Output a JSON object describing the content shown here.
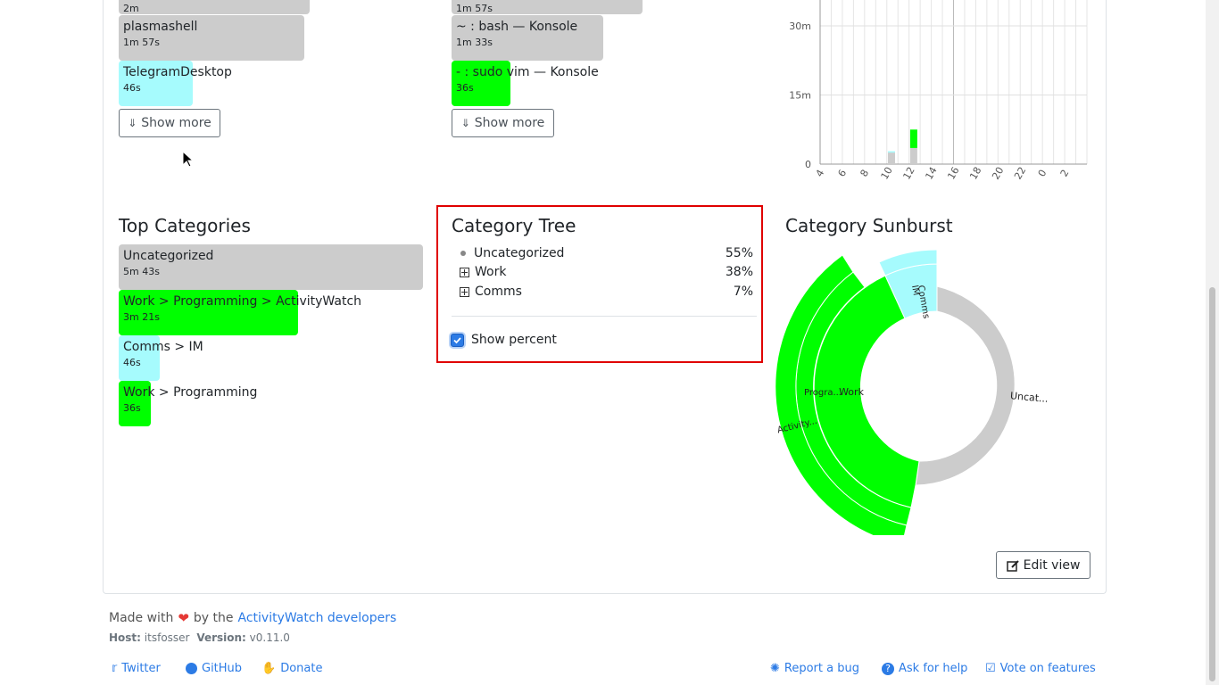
{
  "top_apps": {
    "items": [
      {
        "name": "",
        "time": "2m",
        "fill": 0.79,
        "color": "#cccccc"
      },
      {
        "name": "plasmashell",
        "time": "1m 57s",
        "fill": 0.61,
        "color": "#cccccc"
      },
      {
        "name": "TelegramDesktop",
        "time": "46s",
        "fill": 0.24,
        "color": "#a6fbfd"
      }
    ],
    "show_more": "Show more"
  },
  "top_titles": {
    "items": [
      {
        "name": "",
        "time": "1m 57s",
        "fill": 0.64,
        "color": "#cccccc"
      },
      {
        "name": "~ : bash — Konsole",
        "time": "1m 33s",
        "fill": 0.51,
        "color": "#cccccc"
      },
      {
        "name": "- : sudo vim — Konsole",
        "time": "36s",
        "fill": 0.2,
        "color": "#00ff00"
      }
    ],
    "show_more": "Show more"
  },
  "timeline_chart": {
    "y_ticks": [
      "30m",
      "15m",
      "0"
    ],
    "x_ticks": [
      "4",
      "6",
      "8",
      "10",
      "12",
      "14",
      "16",
      "18",
      "20",
      "22",
      "0",
      "2"
    ]
  },
  "chart_data": {
    "type": "bar",
    "categories": [
      "4",
      "5",
      "6",
      "7",
      "8",
      "9",
      "10",
      "11",
      "12",
      "13",
      "14",
      "15",
      "16",
      "17",
      "18",
      "19",
      "20",
      "21",
      "22",
      "23",
      "0",
      "1",
      "2",
      "3"
    ],
    "series": [
      {
        "values": [
          0,
          0,
          0,
          0,
          0,
          0,
          2.5,
          0,
          3.5,
          0,
          0,
          0,
          0,
          0,
          0,
          0,
          0,
          0,
          0,
          0,
          0,
          0,
          0,
          0
        ]
      },
      {
        "values": [
          0,
          0,
          0,
          0,
          0,
          0,
          0.3,
          0,
          0,
          0,
          0,
          0,
          0,
          0,
          0,
          0,
          0,
          0,
          0,
          0,
          0,
          0,
          0,
          0
        ]
      },
      {
        "values": [
          0,
          0,
          0,
          0,
          0,
          0,
          0,
          0,
          4,
          0,
          0,
          0,
          0,
          0,
          0,
          0,
          0,
          0,
          0,
          0,
          0,
          0,
          0,
          0
        ]
      }
    ],
    "series_colors": [
      "#cccccc",
      "#a6fbfd",
      "#00ff00"
    ],
    "ylim": [
      0,
      35
    ],
    "grid": true
  },
  "top_categories": {
    "title": "Top Categories",
    "items": [
      {
        "name": "Uncategorized",
        "time": "5m 43s",
        "fill": 1.0,
        "color": "#cccccc"
      },
      {
        "name": "Work > Programming > ActivityWatch",
        "time": "3m 21s",
        "fill": 0.59,
        "color": "#00ff00"
      },
      {
        "name": "Comms > IM",
        "time": "46s",
        "fill": 0.13,
        "color": "#a6fbfd"
      },
      {
        "name": "Work > Programming",
        "time": "36s",
        "fill": 0.11,
        "color": "#00ff00"
      }
    ]
  },
  "category_tree": {
    "title": "Category Tree",
    "rows": [
      {
        "name": "Uncategorized",
        "pct": "55%",
        "icon": "bullet-icon"
      },
      {
        "name": "Work",
        "pct": "38%",
        "icon": "expand-plus-icon"
      },
      {
        "name": "Comms",
        "pct": "7%",
        "icon": "expand-plus-icon"
      }
    ],
    "show_percent_label": "Show percent",
    "show_percent_checked": true
  },
  "sunburst": {
    "title": "Category Sunburst",
    "labels": [
      "IM",
      "Comms",
      "Work",
      "Progra...",
      "Activity...",
      "Uncat..."
    ]
  },
  "edit_view": "Edit view",
  "footer": {
    "made_with": "Made with",
    "by_the": "by the",
    "developers_link": "ActivityWatch developers",
    "host_label": "Host:",
    "host_value": "itsfosser",
    "version_label": "Version:",
    "version_value": "v0.11.0",
    "links_left": [
      "Twitter",
      "GitHub",
      "Donate"
    ],
    "links_right": [
      "Report a bug",
      "Ask for help",
      "Vote on features"
    ]
  },
  "colors": {
    "accent": "#2c7be5",
    "highlight_border": "#e00000"
  }
}
